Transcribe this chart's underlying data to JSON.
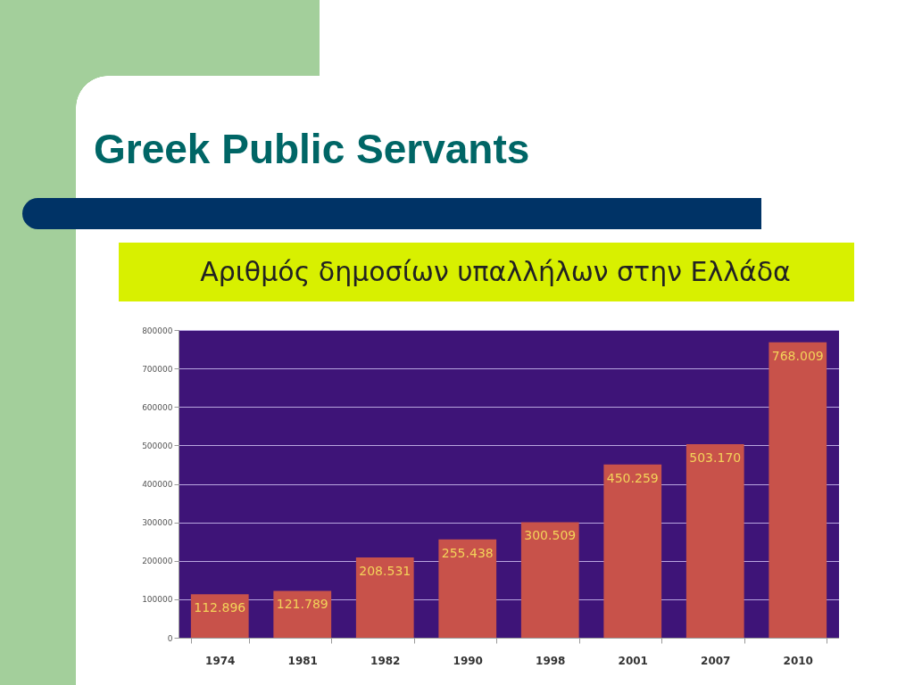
{
  "chart_data": {
    "type": "bar",
    "title": "Greek Public Servants",
    "subtitle": "Αριθμός δημοσίων υπαλλήλων στην Ελλάδα",
    "categories": [
      "1974",
      "1981",
      "1982",
      "1990",
      "1998",
      "2001",
      "2007",
      "2010"
    ],
    "values": [
      112896,
      121789,
      208531,
      255438,
      300509,
      450259,
      503170,
      768009
    ],
    "value_labels": [
      "112.896",
      "121.789",
      "208.531",
      "255.438",
      "300.509",
      "450.259",
      "503.170",
      "768.009"
    ],
    "color": "#c8524a",
    "ylim": [
      0,
      800000
    ],
    "yticks": [
      0,
      100000,
      200000,
      300000,
      400000,
      500000,
      600000,
      700000,
      800000
    ],
    "grid": "y"
  }
}
